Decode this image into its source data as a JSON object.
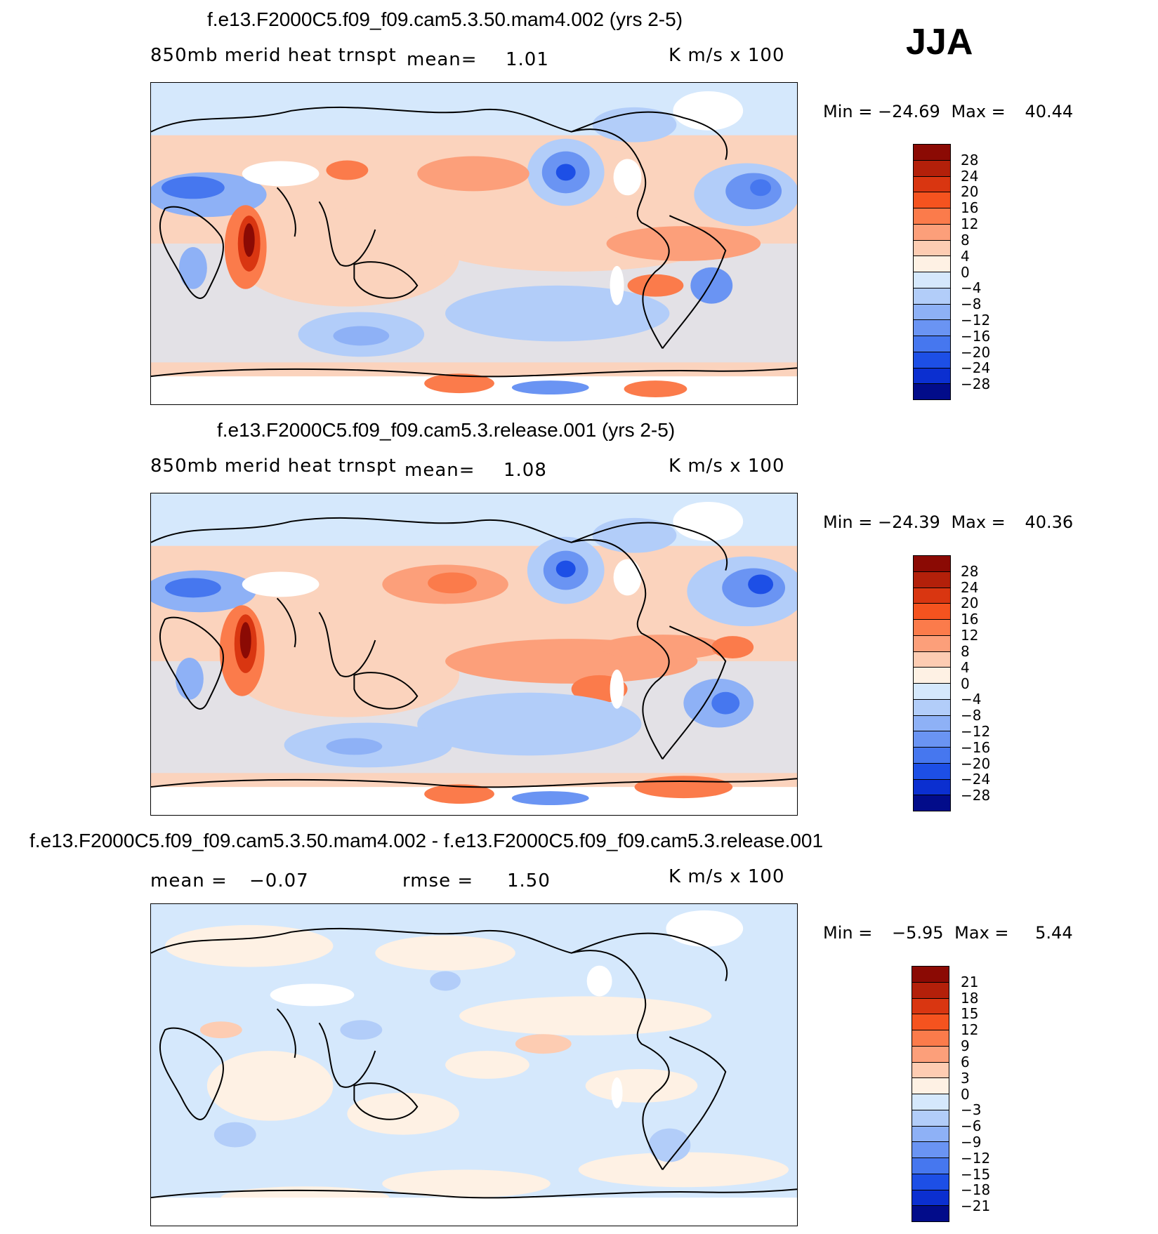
{
  "season": "JJA",
  "units": "K m/s x 100",
  "panels": [
    {
      "title": "f.e13.F2000C5.f09_f09.cam5.3.50.mam4.002 (yrs 2-5)",
      "field": "850mb merid heat trnspt",
      "stat_label": "mean=",
      "stat_value": "1.01",
      "min_label": "Min =",
      "min_value": "−24.69",
      "max_label": "Max =",
      "max_value": "40.44"
    },
    {
      "title": "f.e13.F2000C5.f09_f09.cam5.3.release.001 (yrs 2-5)",
      "field": "850mb merid heat trnspt",
      "stat_label": "mean=",
      "stat_value": "1.08",
      "min_label": "Min =",
      "min_value": "−24.39",
      "max_label": "Max =",
      "max_value": "40.36"
    },
    {
      "title": "f.e13.F2000C5.f09_f09.cam5.3.50.mam4.002 - f.e13.F2000C5.f09_f09.cam5.3.release.001",
      "mean_label": "mean =",
      "mean_value": "−0.07",
      "rmse_label": "rmse =",
      "rmse_value": "1.50",
      "min_label": "Min =",
      "min_value": "−5.95",
      "max_label": "Max =",
      "max_value": "5.44"
    }
  ],
  "colorbars": {
    "abs_levels": [
      "28",
      "24",
      "20",
      "16",
      "12",
      "8",
      "4",
      "0",
      "−4",
      "−8",
      "−12",
      "−16",
      "−20",
      "−24",
      "−28"
    ],
    "diff_levels": [
      "21",
      "18",
      "15",
      "12",
      "9",
      "6",
      "3",
      "0",
      "−3",
      "−6",
      "−9",
      "−12",
      "−15",
      "−18",
      "−21"
    ],
    "colors": [
      "#8b0a04",
      "#b3200a",
      "#d93611",
      "#f5531f",
      "#fb7b4b",
      "#fc9f7a",
      "#fdccb2",
      "#fef1e4",
      "#d5e8fc",
      "#b2cdf9",
      "#8eb1f6",
      "#6a94f3",
      "#4677ef",
      "#1d4fe6",
      "#0b2fd0",
      "#020c8a"
    ]
  }
}
